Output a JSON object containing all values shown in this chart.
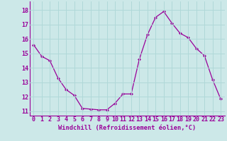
{
  "x": [
    0,
    1,
    2,
    3,
    4,
    5,
    6,
    7,
    8,
    9,
    10,
    11,
    12,
    13,
    14,
    15,
    16,
    17,
    18,
    19,
    20,
    21,
    22,
    23
  ],
  "y": [
    15.6,
    14.8,
    14.5,
    13.3,
    12.5,
    12.1,
    11.2,
    11.15,
    11.1,
    11.1,
    11.55,
    12.2,
    12.2,
    14.6,
    16.3,
    17.5,
    17.9,
    17.1,
    16.4,
    16.1,
    15.35,
    14.85,
    13.2,
    11.85
  ],
  "line_color": "#990099",
  "marker": "D",
  "marker_size": 2.2,
  "bg_color": "#cce8e8",
  "grid_color": "#b0d8d8",
  "xlabel": "Windchill (Refroidissement éolien,°C)",
  "tick_color": "#990099",
  "ylim": [
    10.7,
    18.6
  ],
  "xlim": [
    -0.5,
    23.5
  ],
  "yticks": [
    11,
    12,
    13,
    14,
    15,
    16,
    17,
    18
  ],
  "xticks": [
    0,
    1,
    2,
    3,
    4,
    5,
    6,
    7,
    8,
    9,
    10,
    11,
    12,
    13,
    14,
    15,
    16,
    17,
    18,
    19,
    20,
    21,
    22,
    23
  ],
  "tick_fontsize": 6.0,
  "xlabel_fontsize": 6.2
}
